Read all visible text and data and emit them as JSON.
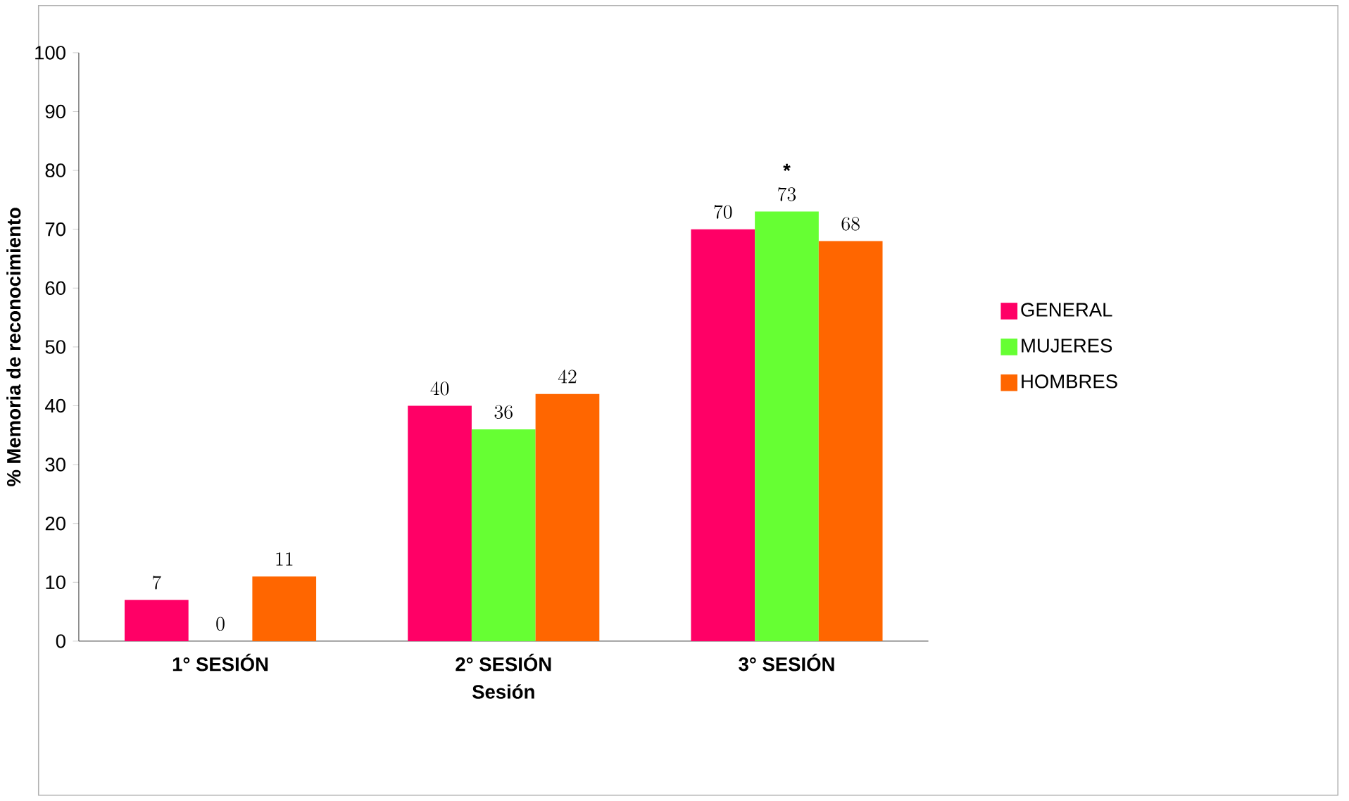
{
  "chart_data": {
    "type": "bar",
    "xlabel": "Sesión",
    "ylabel": "% Memoria de reconocimiento",
    "categories": [
      "1° SESIÓN",
      "2° SESIÓN",
      "3° SESIÓN"
    ],
    "series": [
      {
        "name": "GENERAL",
        "color": "#ff0066",
        "values": [
          7,
          40,
          70
        ]
      },
      {
        "name": "MUJERES",
        "color": "#66ff33",
        "values": [
          0,
          36,
          73
        ]
      },
      {
        "name": "HOMBRES",
        "color": "#ff6600",
        "values": [
          11,
          42,
          68
        ]
      }
    ],
    "ylim": [
      0,
      100
    ],
    "yticks": [
      0,
      10,
      20,
      30,
      40,
      50,
      60,
      70,
      80,
      90,
      100
    ],
    "data_labels": true,
    "legend": "right",
    "grid": false,
    "annotations": [
      {
        "text": "*",
        "x": "3° SESIÓN",
        "y": 73
      }
    ]
  }
}
